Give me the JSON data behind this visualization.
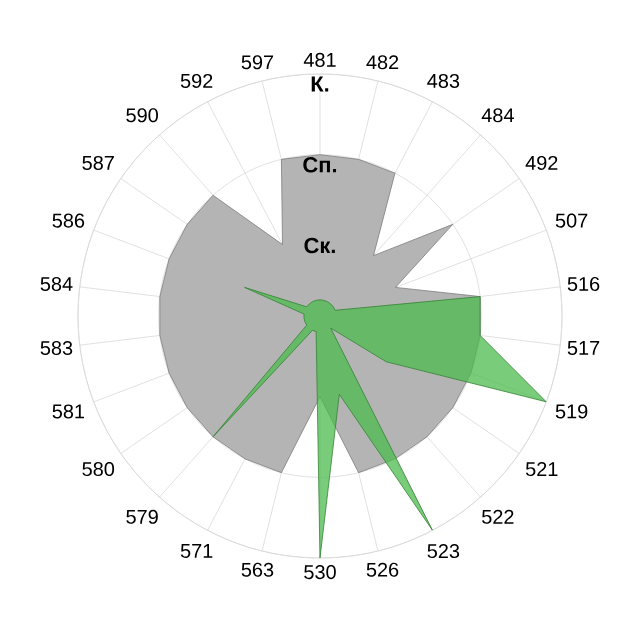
{
  "chart_data": {
    "type": "radar",
    "categories": [
      "481",
      "482",
      "483",
      "484",
      "492",
      "507",
      "516",
      "517",
      "519",
      "521",
      "522",
      "523",
      "526",
      "530",
      "563",
      "571",
      "579",
      "580",
      "581",
      "583",
      "584",
      "586",
      "587",
      "590",
      "592",
      "597"
    ],
    "series": [
      {
        "color": "#b4b4b4",
        "values": [
          2,
          2,
          2,
          1,
          2,
          1,
          2,
          2,
          2,
          2,
          2,
          2,
          2,
          1,
          2,
          2,
          2,
          2,
          2,
          2,
          2,
          2,
          2,
          2,
          1,
          2
        ]
      },
      {
        "color": "#4cbb4c",
        "values": [
          0.2,
          0.2,
          0.2,
          0.2,
          0.2,
          0.2,
          2,
          2,
          3,
          1,
          0.2,
          3,
          1,
          3,
          0.2,
          0.2,
          2,
          0.2,
          0.2,
          0.2,
          0.2,
          1,
          0.2,
          0.2,
          0.2,
          0.2
        ]
      }
    ],
    "ylim": [
      0,
      3
    ],
    "yticks": [
      {
        "value": 1,
        "label": "Ск."
      },
      {
        "value": 2,
        "label": "Сп."
      },
      {
        "value": 3,
        "label": "К."
      }
    ],
    "grid": true,
    "marker": "none"
  }
}
